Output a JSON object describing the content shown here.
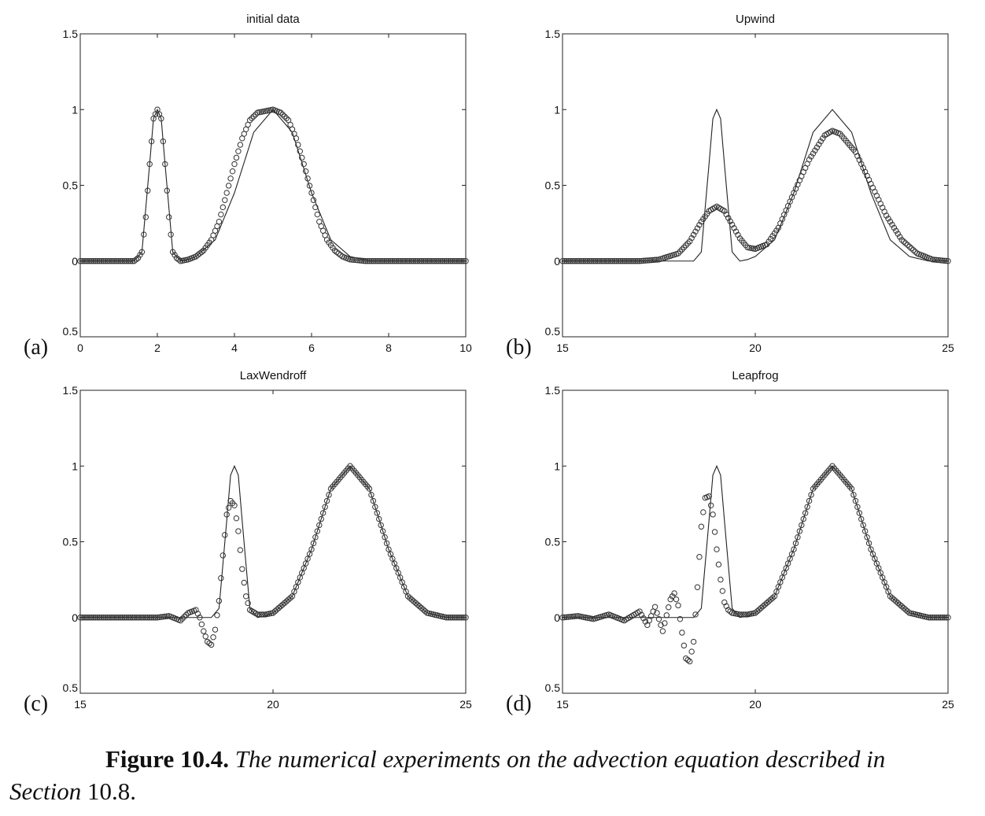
{
  "chart_data": [
    {
      "type": "line",
      "panel": "(a)",
      "title": "initial data",
      "xlim": [
        0,
        10
      ],
      "ylim": [
        -0.5,
        1.5
      ],
      "xticks": [
        0,
        2,
        4,
        6,
        8,
        10
      ],
      "xtick_labels": [
        "0",
        "2",
        "4",
        "6",
        "8",
        "10"
      ],
      "yticks": [
        1.5,
        1,
        0.5,
        0,
        -0.5
      ],
      "ytick_labels": [
        "1.5",
        "1",
        "0.5",
        "0",
        "0.5"
      ],
      "series": [
        {
          "style": "line",
          "x": [
            0,
            1.4,
            1.6,
            1.8,
            1.9,
            2.0,
            2.1,
            2.2,
            2.4,
            2.6,
            2.8,
            3.0,
            3.5,
            4.0,
            4.5,
            5.0,
            5.5,
            6.0,
            6.5,
            7.0,
            7.5,
            8.0,
            10
          ],
          "y": [
            0,
            0,
            0.06,
            0.64,
            0.94,
            1.0,
            0.94,
            0.64,
            0.06,
            0.0,
            0.01,
            0.03,
            0.14,
            0.45,
            0.85,
            1.0,
            0.85,
            0.45,
            0.14,
            0.03,
            0.0,
            0.0,
            0
          ]
        },
        {
          "style": "markers",
          "x": [
            0,
            1.4,
            1.5,
            1.6,
            1.7,
            1.8,
            1.9,
            2.0,
            2.1,
            2.2,
            2.3,
            2.4,
            2.5,
            2.6,
            2.8,
            3.0,
            3.2,
            3.4,
            3.6,
            3.8,
            4.0,
            4.2,
            4.4,
            4.6,
            4.8,
            5.0,
            5.2,
            5.4,
            5.6,
            5.8,
            6.0,
            6.2,
            6.4,
            6.6,
            6.8,
            7.0,
            7.4,
            8.0,
            10
          ],
          "y": [
            0,
            0.0,
            0.02,
            0.06,
            0.29,
            0.64,
            0.94,
            1.0,
            0.94,
            0.64,
            0.29,
            0.06,
            0.02,
            0.0,
            0.01,
            0.03,
            0.07,
            0.14,
            0.26,
            0.45,
            0.64,
            0.81,
            0.93,
            0.98,
            0.99,
            1.0,
            0.98,
            0.93,
            0.81,
            0.64,
            0.45,
            0.26,
            0.14,
            0.07,
            0.03,
            0.01,
            0.0,
            0.0,
            0
          ]
        }
      ]
    },
    {
      "type": "line",
      "panel": "(b)",
      "title": "Upwind",
      "xlim": [
        15,
        25
      ],
      "ylim": [
        -0.5,
        1.5
      ],
      "xticks": [
        15,
        20,
        25
      ],
      "xtick_labels": [
        "15",
        "20",
        "25"
      ],
      "yticks": [
        1.5,
        1,
        0.5,
        0,
        -0.5
      ],
      "ytick_labels": [
        "1.5",
        "1",
        "0.5",
        "0",
        "0.5"
      ],
      "series": [
        {
          "style": "line",
          "x": [
            15,
            18.4,
            18.6,
            18.8,
            18.9,
            19.0,
            19.1,
            19.2,
            19.4,
            19.6,
            19.8,
            20.0,
            20.5,
            21.0,
            21.5,
            22.0,
            22.5,
            23.0,
            23.5,
            24.0,
            24.5,
            25
          ],
          "y": [
            0,
            0,
            0.06,
            0.64,
            0.94,
            1.0,
            0.94,
            0.64,
            0.06,
            0.0,
            0.01,
            0.03,
            0.14,
            0.45,
            0.85,
            1.0,
            0.85,
            0.45,
            0.14,
            0.03,
            0.0,
            0
          ]
        },
        {
          "style": "markers",
          "x": [
            15,
            17.0,
            17.5,
            18.0,
            18.3,
            18.6,
            18.8,
            19.0,
            19.2,
            19.4,
            19.6,
            19.8,
            20.0,
            20.3,
            20.6,
            21.0,
            21.4,
            21.8,
            22.0,
            22.2,
            22.6,
            23.0,
            23.4,
            23.8,
            24.2,
            24.6,
            25
          ],
          "y": [
            0,
            0.0,
            0.01,
            0.05,
            0.13,
            0.26,
            0.33,
            0.36,
            0.33,
            0.24,
            0.15,
            0.09,
            0.08,
            0.11,
            0.22,
            0.45,
            0.67,
            0.83,
            0.86,
            0.84,
            0.72,
            0.51,
            0.3,
            0.14,
            0.05,
            0.01,
            0
          ]
        }
      ]
    },
    {
      "type": "line",
      "panel": "(c)",
      "title": "LaxWendroff",
      "xlim": [
        15,
        25
      ],
      "ylim": [
        -0.5,
        1.5
      ],
      "xticks": [
        15,
        20,
        25
      ],
      "xtick_labels": [
        "15",
        "20",
        "25"
      ],
      "yticks": [
        1.5,
        1,
        0.5,
        0,
        -0.5
      ],
      "ytick_labels": [
        "1.5",
        "1",
        "0.5",
        "0",
        "0.5"
      ],
      "series": [
        {
          "style": "line",
          "x": [
            15,
            18.4,
            18.6,
            18.8,
            18.9,
            19.0,
            19.1,
            19.2,
            19.4,
            19.6,
            19.8,
            20.0,
            20.5,
            21.0,
            21.5,
            22.0,
            22.5,
            23.0,
            23.5,
            24.0,
            24.5,
            25
          ],
          "y": [
            0,
            0,
            0.06,
            0.64,
            0.94,
            1.0,
            0.94,
            0.64,
            0.06,
            0.0,
            0.01,
            0.03,
            0.14,
            0.45,
            0.85,
            1.0,
            0.85,
            0.45,
            0.14,
            0.03,
            0.0,
            0
          ]
        },
        {
          "style": "markers",
          "x": [
            15,
            17.0,
            17.3,
            17.6,
            17.8,
            18.0,
            18.1,
            18.2,
            18.3,
            18.4,
            18.5,
            18.6,
            18.7,
            18.8,
            18.9,
            19.0,
            19.1,
            19.2,
            19.3,
            19.4,
            19.6,
            19.8,
            20.0,
            20.5,
            21.0,
            21.5,
            22.0,
            22.5,
            23.0,
            23.5,
            24.0,
            24.5,
            25
          ],
          "y": [
            0,
            0.0,
            0.01,
            -0.02,
            0.03,
            0.05,
            0.0,
            -0.09,
            -0.16,
            -0.18,
            -0.08,
            0.11,
            0.41,
            0.68,
            0.77,
            0.74,
            0.57,
            0.32,
            0.14,
            0.05,
            0.02,
            0.02,
            0.03,
            0.14,
            0.45,
            0.85,
            1.0,
            0.85,
            0.45,
            0.14,
            0.03,
            0.0,
            0
          ]
        }
      ]
    },
    {
      "type": "line",
      "panel": "(d)",
      "title": "Leapfrog",
      "xlim": [
        15,
        25
      ],
      "ylim": [
        -0.5,
        1.5
      ],
      "xticks": [
        15,
        20,
        25
      ],
      "xtick_labels": [
        "15",
        "20",
        "25"
      ],
      "yticks": [
        1.5,
        1,
        0.5,
        0,
        -0.5
      ],
      "ytick_labels": [
        "1.5",
        "1",
        "0.5",
        "0",
        "0.5"
      ],
      "series": [
        {
          "style": "line",
          "x": [
            15,
            18.4,
            18.6,
            18.8,
            18.9,
            19.0,
            19.1,
            19.2,
            19.4,
            19.6,
            19.8,
            20.0,
            20.5,
            21.0,
            21.5,
            22.0,
            22.5,
            23.0,
            23.5,
            24.0,
            24.5,
            25
          ],
          "y": [
            0,
            0,
            0.06,
            0.64,
            0.94,
            1.0,
            0.94,
            0.64,
            0.06,
            0.0,
            0.01,
            0.03,
            0.14,
            0.45,
            0.85,
            1.0,
            0.85,
            0.45,
            0.14,
            0.03,
            0.0,
            0
          ]
        },
        {
          "style": "markers",
          "x": [
            15,
            15.4,
            15.8,
            16.2,
            16.6,
            17.0,
            17.2,
            17.4,
            17.6,
            17.8,
            17.9,
            18.0,
            18.1,
            18.2,
            18.3,
            18.4,
            18.5,
            18.6,
            18.7,
            18.8,
            18.9,
            19.0,
            19.1,
            19.2,
            19.3,
            19.4,
            19.6,
            19.8,
            20.0,
            20.5,
            21.0,
            21.5,
            22.0,
            22.5,
            23.0,
            23.5,
            24.0,
            24.5,
            25
          ],
          "y": [
            0,
            0.01,
            -0.01,
            0.02,
            -0.02,
            0.04,
            -0.05,
            0.07,
            -0.09,
            0.12,
            0.16,
            0.08,
            -0.1,
            -0.27,
            -0.29,
            -0.16,
            0.2,
            0.6,
            0.79,
            0.8,
            0.68,
            0.45,
            0.25,
            0.1,
            0.05,
            0.03,
            0.02,
            0.02,
            0.03,
            0.14,
            0.45,
            0.85,
            1.0,
            0.85,
            0.45,
            0.14,
            0.03,
            0.0,
            0
          ]
        }
      ]
    }
  ],
  "caption": {
    "label": "Figure 10.4.",
    "text_line1": " The numerical experiments on the advection equation described in",
    "text_line2_italic": "Section",
    "text_line2_rest": " 10.8."
  }
}
